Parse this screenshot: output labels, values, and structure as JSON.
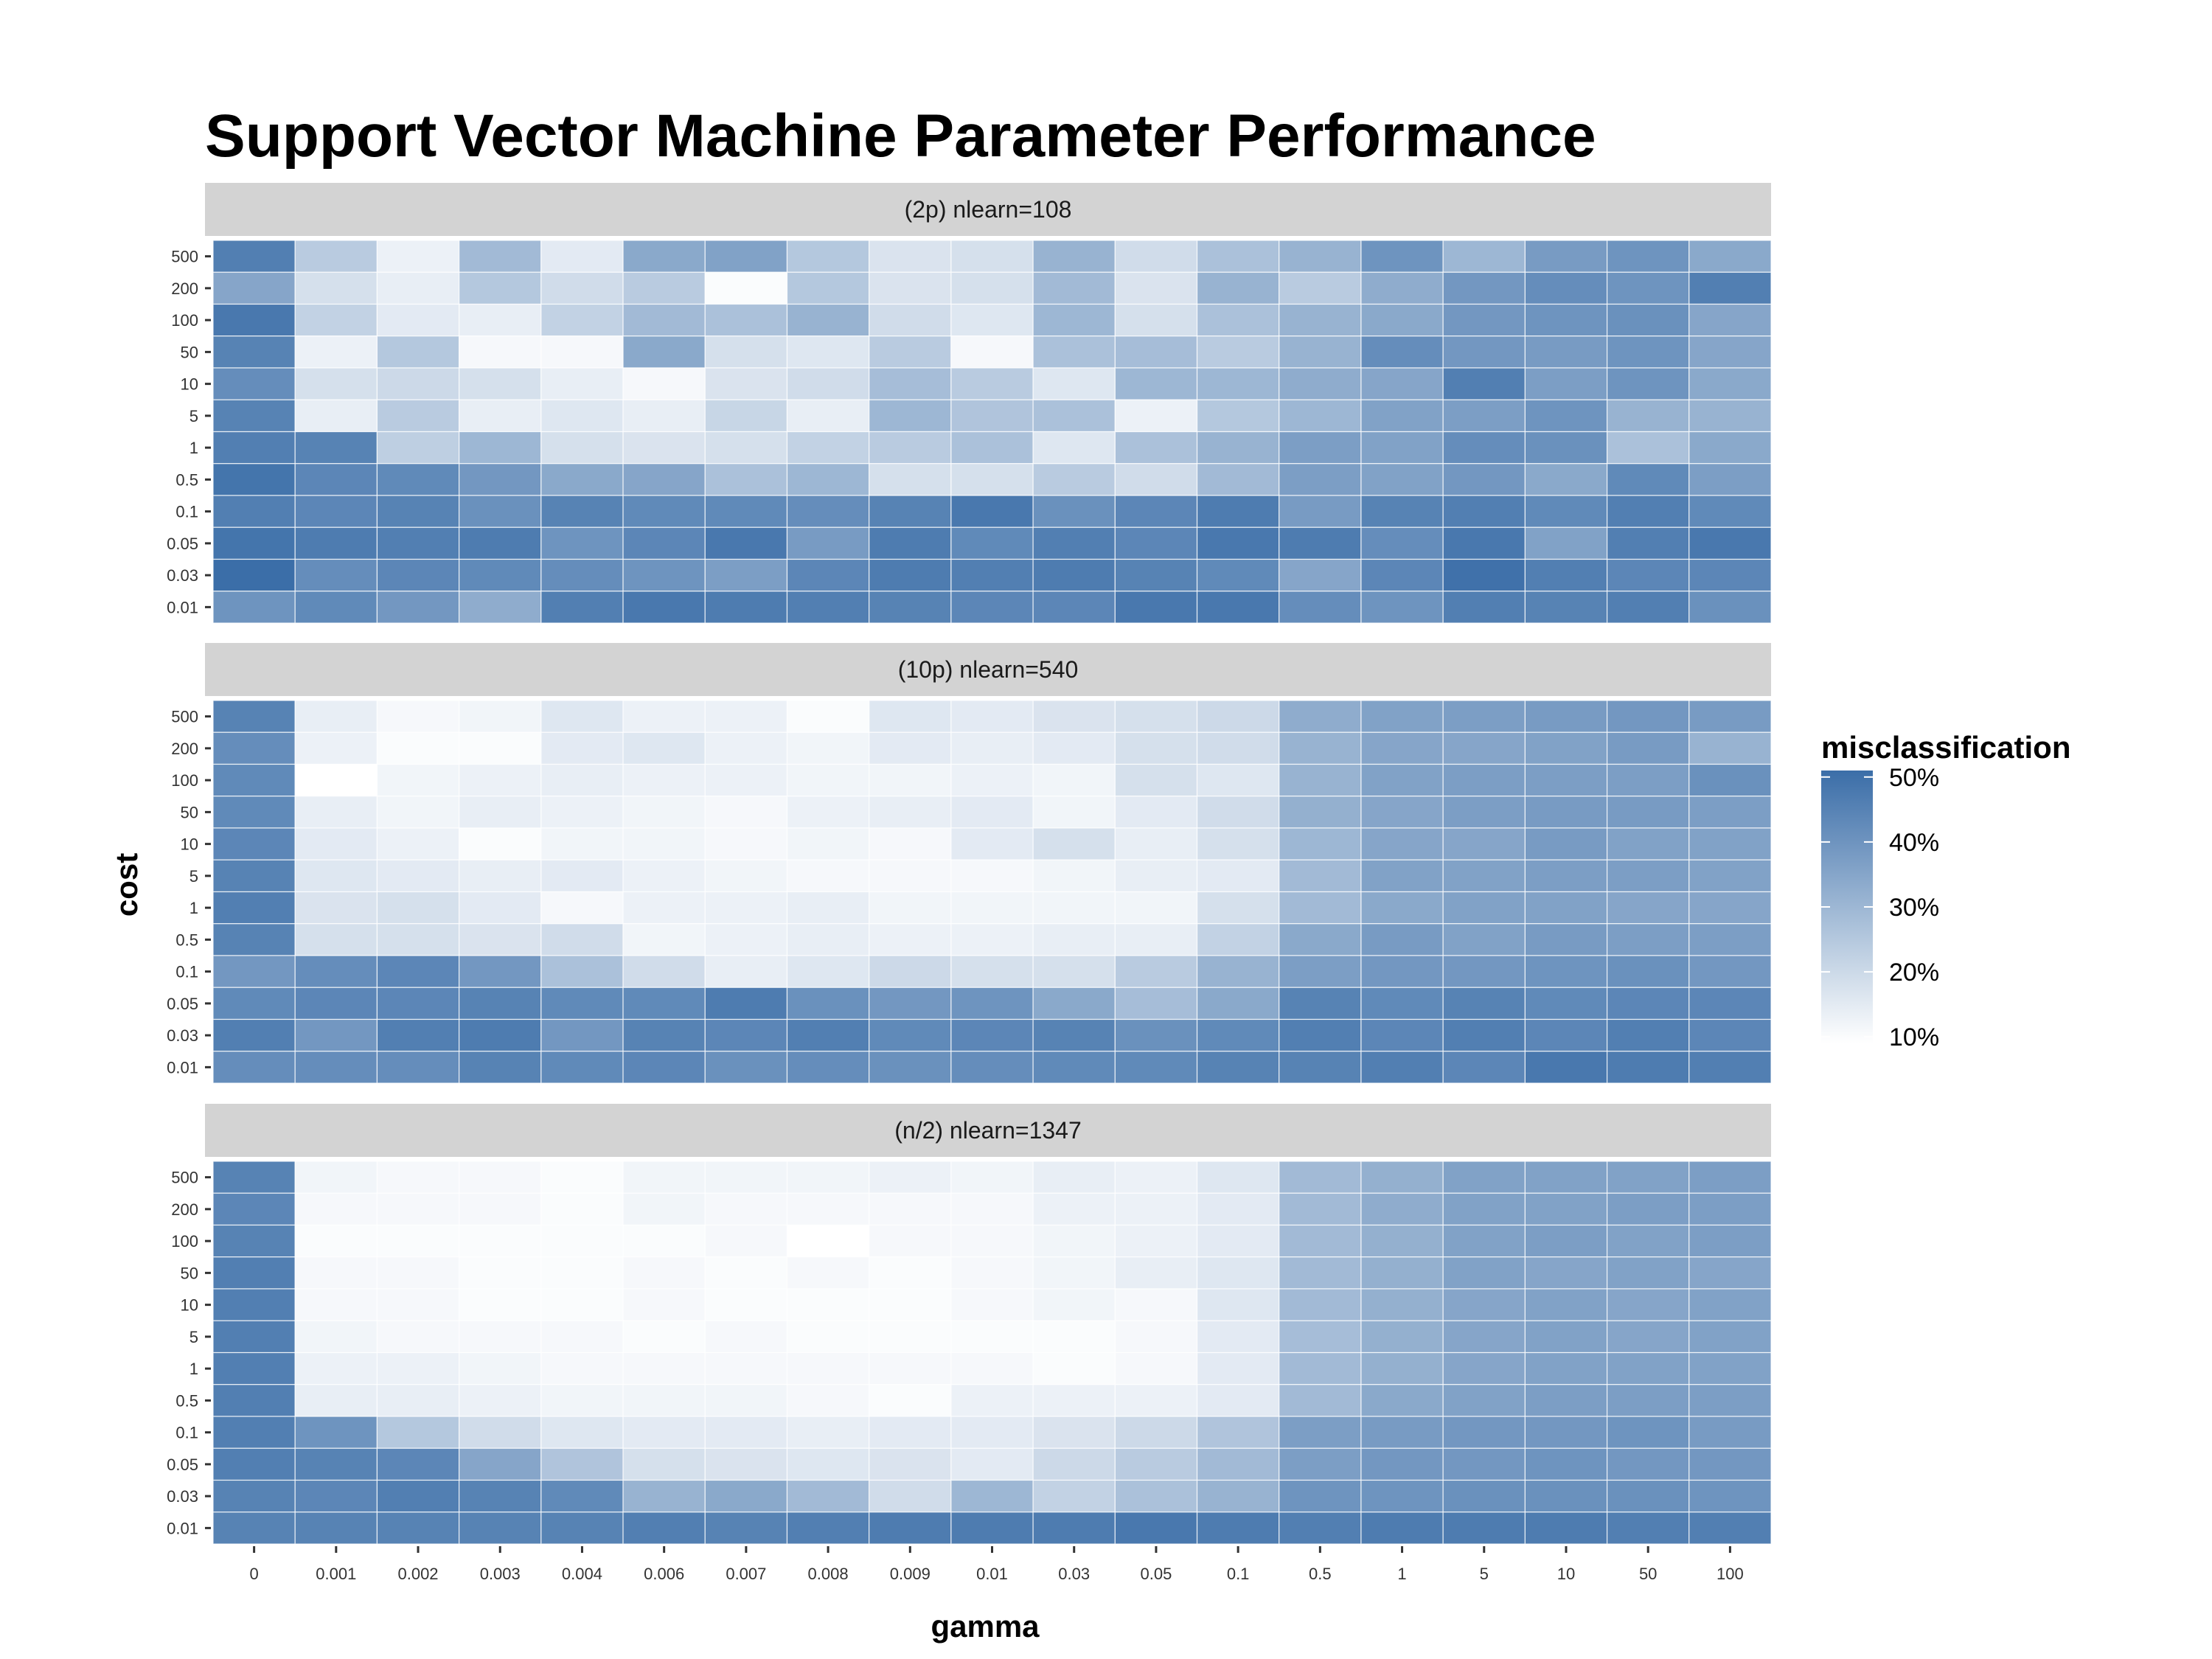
{
  "chart_data": {
    "type": "heatmap",
    "title": "Support Vector Machine Parameter Performance",
    "xlabel": "gamma",
    "ylabel": "cost",
    "x_categories": [
      "0",
      "0.001",
      "0.002",
      "0.003",
      "0.004",
      "0.006",
      "0.007",
      "0.008",
      "0.009",
      "0.01",
      "0.03",
      "0.05",
      "0.1",
      "0.5",
      "1",
      "5",
      "10",
      "50",
      "100"
    ],
    "y_categories": [
      "500",
      "200",
      "100",
      "50",
      "10",
      "5",
      "1",
      "0.5",
      "0.1",
      "0.05",
      "0.03",
      "0.01"
    ],
    "legend": {
      "title": "misclassification",
      "min": 0.09,
      "max": 0.51,
      "breaks": [
        0.1,
        0.2,
        0.3,
        0.4,
        0.5
      ],
      "labels": [
        "10%",
        "20%",
        "30%",
        "40%",
        "50%"
      ],
      "low_color": "#ffffff",
      "high_color": "#3b6ea8",
      "position": "right"
    },
    "panels": [
      {
        "label": "(2p)  nlearn=108",
        "values": [
          [
            0.46,
            0.24,
            0.13,
            0.29,
            0.15,
            0.34,
            0.36,
            0.25,
            0.17,
            0.18,
            0.31,
            0.19,
            0.27,
            0.31,
            0.4,
            0.3,
            0.38,
            0.4,
            0.34
          ],
          [
            0.35,
            0.18,
            0.14,
            0.25,
            0.19,
            0.24,
            0.1,
            0.25,
            0.17,
            0.18,
            0.29,
            0.17,
            0.31,
            0.24,
            0.33,
            0.39,
            0.42,
            0.4,
            0.46
          ],
          [
            0.48,
            0.22,
            0.15,
            0.14,
            0.22,
            0.29,
            0.27,
            0.31,
            0.19,
            0.16,
            0.3,
            0.18,
            0.27,
            0.31,
            0.34,
            0.39,
            0.4,
            0.41,
            0.35
          ],
          [
            0.45,
            0.13,
            0.25,
            0.11,
            0.11,
            0.34,
            0.18,
            0.16,
            0.24,
            0.11,
            0.27,
            0.28,
            0.24,
            0.31,
            0.42,
            0.39,
            0.38,
            0.4,
            0.35
          ],
          [
            0.42,
            0.18,
            0.2,
            0.18,
            0.14,
            0.11,
            0.17,
            0.19,
            0.28,
            0.24,
            0.16,
            0.3,
            0.3,
            0.33,
            0.35,
            0.46,
            0.37,
            0.4,
            0.34
          ],
          [
            0.45,
            0.14,
            0.24,
            0.14,
            0.16,
            0.14,
            0.21,
            0.14,
            0.3,
            0.26,
            0.27,
            0.13,
            0.25,
            0.3,
            0.36,
            0.37,
            0.4,
            0.31,
            0.31
          ],
          [
            0.46,
            0.45,
            0.23,
            0.3,
            0.18,
            0.17,
            0.18,
            0.22,
            0.24,
            0.27,
            0.16,
            0.27,
            0.31,
            0.37,
            0.36,
            0.42,
            0.41,
            0.27,
            0.34
          ],
          [
            0.49,
            0.44,
            0.43,
            0.39,
            0.34,
            0.35,
            0.27,
            0.3,
            0.18,
            0.18,
            0.24,
            0.19,
            0.29,
            0.37,
            0.36,
            0.39,
            0.34,
            0.43,
            0.37
          ],
          [
            0.46,
            0.44,
            0.45,
            0.41,
            0.45,
            0.43,
            0.43,
            0.42,
            0.45,
            0.48,
            0.41,
            0.44,
            0.47,
            0.38,
            0.45,
            0.46,
            0.43,
            0.46,
            0.43
          ],
          [
            0.49,
            0.47,
            0.46,
            0.47,
            0.4,
            0.44,
            0.48,
            0.38,
            0.47,
            0.43,
            0.46,
            0.44,
            0.48,
            0.47,
            0.42,
            0.48,
            0.36,
            0.46,
            0.48
          ],
          [
            0.51,
            0.42,
            0.44,
            0.43,
            0.42,
            0.4,
            0.37,
            0.44,
            0.47,
            0.46,
            0.47,
            0.45,
            0.43,
            0.35,
            0.44,
            0.5,
            0.46,
            0.44,
            0.44
          ],
          [
            0.4,
            0.43,
            0.39,
            0.33,
            0.46,
            0.48,
            0.47,
            0.46,
            0.45,
            0.44,
            0.44,
            0.48,
            0.48,
            0.42,
            0.4,
            0.46,
            0.45,
            0.46,
            0.41
          ]
        ]
      },
      {
        "label": "(10p)  nlearn=540",
        "values": [
          [
            0.45,
            0.14,
            0.11,
            0.12,
            0.16,
            0.13,
            0.13,
            0.1,
            0.16,
            0.15,
            0.17,
            0.18,
            0.2,
            0.33,
            0.36,
            0.37,
            0.38,
            0.39,
            0.38
          ],
          [
            0.42,
            0.13,
            0.1,
            0.1,
            0.15,
            0.16,
            0.13,
            0.12,
            0.15,
            0.14,
            0.15,
            0.18,
            0.19,
            0.31,
            0.35,
            0.35,
            0.36,
            0.38,
            0.31
          ],
          [
            0.43,
            0.09,
            0.12,
            0.13,
            0.14,
            0.13,
            0.13,
            0.12,
            0.12,
            0.13,
            0.12,
            0.18,
            0.16,
            0.31,
            0.36,
            0.37,
            0.37,
            0.37,
            0.41
          ],
          [
            0.43,
            0.14,
            0.12,
            0.14,
            0.13,
            0.12,
            0.11,
            0.13,
            0.14,
            0.15,
            0.12,
            0.15,
            0.19,
            0.32,
            0.35,
            0.37,
            0.38,
            0.38,
            0.37
          ],
          [
            0.44,
            0.15,
            0.13,
            0.1,
            0.12,
            0.12,
            0.11,
            0.12,
            0.11,
            0.15,
            0.18,
            0.14,
            0.18,
            0.3,
            0.35,
            0.35,
            0.38,
            0.36,
            0.36
          ],
          [
            0.45,
            0.16,
            0.15,
            0.14,
            0.15,
            0.13,
            0.12,
            0.11,
            0.11,
            0.11,
            0.12,
            0.14,
            0.15,
            0.29,
            0.36,
            0.36,
            0.37,
            0.37,
            0.36
          ],
          [
            0.46,
            0.17,
            0.18,
            0.15,
            0.11,
            0.13,
            0.13,
            0.14,
            0.12,
            0.12,
            0.12,
            0.12,
            0.18,
            0.29,
            0.34,
            0.36,
            0.36,
            0.35,
            0.35
          ],
          [
            0.45,
            0.18,
            0.18,
            0.17,
            0.19,
            0.12,
            0.13,
            0.14,
            0.13,
            0.13,
            0.14,
            0.14,
            0.22,
            0.34,
            0.38,
            0.36,
            0.38,
            0.37,
            0.37
          ],
          [
            0.39,
            0.42,
            0.44,
            0.39,
            0.27,
            0.19,
            0.14,
            0.16,
            0.2,
            0.18,
            0.18,
            0.24,
            0.31,
            0.37,
            0.39,
            0.39,
            0.4,
            0.41,
            0.39
          ],
          [
            0.43,
            0.44,
            0.44,
            0.45,
            0.43,
            0.43,
            0.47,
            0.41,
            0.39,
            0.4,
            0.34,
            0.28,
            0.34,
            0.45,
            0.43,
            0.45,
            0.43,
            0.44,
            0.44
          ],
          [
            0.46,
            0.39,
            0.46,
            0.47,
            0.39,
            0.45,
            0.44,
            0.46,
            0.43,
            0.44,
            0.45,
            0.41,
            0.43,
            0.46,
            0.44,
            0.46,
            0.44,
            0.46,
            0.44
          ],
          [
            0.42,
            0.42,
            0.42,
            0.45,
            0.43,
            0.44,
            0.41,
            0.42,
            0.41,
            0.42,
            0.43,
            0.43,
            0.45,
            0.45,
            0.46,
            0.44,
            0.48,
            0.47,
            0.46
          ]
        ]
      },
      {
        "label": "(n/2)  nlearn=1347",
        "values": [
          [
            0.45,
            0.12,
            0.11,
            0.11,
            0.1,
            0.12,
            0.12,
            0.12,
            0.13,
            0.12,
            0.14,
            0.13,
            0.16,
            0.29,
            0.32,
            0.36,
            0.36,
            0.36,
            0.37
          ],
          [
            0.44,
            0.11,
            0.11,
            0.11,
            0.1,
            0.12,
            0.11,
            0.11,
            0.11,
            0.11,
            0.13,
            0.13,
            0.15,
            0.29,
            0.33,
            0.36,
            0.36,
            0.37,
            0.37
          ],
          [
            0.45,
            0.1,
            0.1,
            0.1,
            0.1,
            0.1,
            0.11,
            0.09,
            0.11,
            0.11,
            0.12,
            0.13,
            0.15,
            0.29,
            0.32,
            0.36,
            0.37,
            0.36,
            0.37
          ],
          [
            0.46,
            0.11,
            0.11,
            0.1,
            0.1,
            0.11,
            0.1,
            0.11,
            0.1,
            0.11,
            0.12,
            0.14,
            0.16,
            0.29,
            0.32,
            0.36,
            0.35,
            0.36,
            0.35
          ],
          [
            0.46,
            0.11,
            0.11,
            0.1,
            0.1,
            0.11,
            0.1,
            0.1,
            0.1,
            0.11,
            0.12,
            0.11,
            0.16,
            0.29,
            0.32,
            0.35,
            0.36,
            0.35,
            0.36
          ],
          [
            0.46,
            0.12,
            0.11,
            0.11,
            0.11,
            0.1,
            0.11,
            0.1,
            0.1,
            0.1,
            0.1,
            0.11,
            0.15,
            0.28,
            0.32,
            0.35,
            0.36,
            0.35,
            0.36
          ],
          [
            0.46,
            0.13,
            0.13,
            0.12,
            0.11,
            0.11,
            0.11,
            0.11,
            0.11,
            0.11,
            0.1,
            0.11,
            0.15,
            0.29,
            0.32,
            0.35,
            0.36,
            0.36,
            0.36
          ],
          [
            0.46,
            0.14,
            0.14,
            0.13,
            0.12,
            0.12,
            0.12,
            0.11,
            0.1,
            0.13,
            0.13,
            0.13,
            0.15,
            0.29,
            0.34,
            0.36,
            0.37,
            0.37,
            0.37
          ],
          [
            0.46,
            0.4,
            0.25,
            0.19,
            0.16,
            0.15,
            0.15,
            0.14,
            0.15,
            0.15,
            0.17,
            0.2,
            0.26,
            0.37,
            0.38,
            0.39,
            0.39,
            0.4,
            0.38
          ],
          [
            0.46,
            0.45,
            0.44,
            0.35,
            0.26,
            0.18,
            0.17,
            0.16,
            0.17,
            0.15,
            0.2,
            0.24,
            0.29,
            0.37,
            0.39,
            0.39,
            0.4,
            0.39,
            0.39
          ],
          [
            0.45,
            0.44,
            0.46,
            0.45,
            0.43,
            0.31,
            0.34,
            0.29,
            0.19,
            0.3,
            0.22,
            0.27,
            0.31,
            0.4,
            0.4,
            0.41,
            0.41,
            0.41,
            0.4
          ],
          [
            0.45,
            0.45,
            0.45,
            0.45,
            0.45,
            0.46,
            0.45,
            0.46,
            0.47,
            0.47,
            0.47,
            0.48,
            0.47,
            0.46,
            0.47,
            0.47,
            0.47,
            0.46,
            0.46
          ]
        ]
      }
    ]
  }
}
